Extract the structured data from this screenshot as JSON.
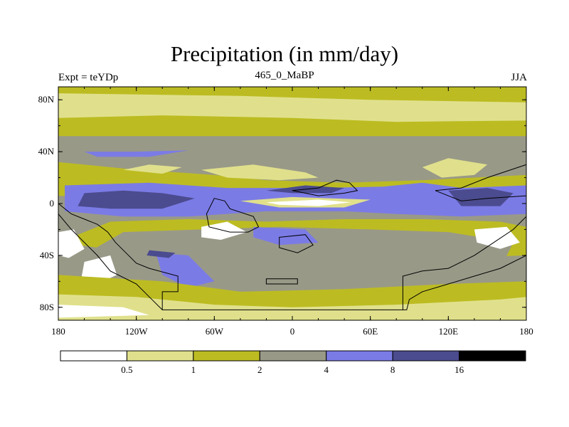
{
  "chart_data": {
    "type": "heatmap",
    "title": "Precipitation (in mm/day)",
    "left_string": "Expt = teYDp",
    "center_string": "465_0_MaBP",
    "right_string": "JJA",
    "x_axis": {
      "range": [
        -180,
        180
      ],
      "ticks": [
        -180,
        -120,
        -60,
        0,
        60,
        120,
        180
      ],
      "tick_labels": [
        "180",
        "120W",
        "60W",
        "0",
        "60E",
        "120E",
        "180"
      ]
    },
    "y_axis": {
      "range": [
        -90,
        90
      ],
      "ticks": [
        80,
        40,
        0,
        -40,
        -80
      ],
      "tick_labels": [
        "80N",
        "40N",
        "0",
        "40S",
        "80S"
      ]
    },
    "colorbar": {
      "levels": [
        "0.5",
        "1",
        "2",
        "4",
        "8",
        "16"
      ],
      "colors": [
        "#ffffff",
        "#e0e08c",
        "#bcbc22",
        "#999988",
        "#7b7be6",
        "#4b4b8f",
        "#000000"
      ]
    },
    "fields": [
      {
        "name": "polar-north",
        "band": 2,
        "points": [
          [
            -180,
            90
          ],
          [
            180,
            90
          ],
          [
            180,
            52
          ],
          [
            -180,
            52
          ]
        ]
      },
      {
        "name": "arctic-pale",
        "band": 1,
        "points": [
          [
            -180,
            85
          ],
          [
            -40,
            83
          ],
          [
            60,
            80
          ],
          [
            180,
            78
          ],
          [
            180,
            64
          ],
          [
            80,
            63
          ],
          [
            0,
            66
          ],
          [
            -100,
            68
          ],
          [
            -180,
            66
          ]
        ]
      },
      {
        "name": "midlat-north-olive",
        "band": 2,
        "points": [
          [
            -180,
            32
          ],
          [
            -130,
            27
          ],
          [
            -60,
            22
          ],
          [
            -20,
            18
          ],
          [
            40,
            16
          ],
          [
            100,
            18
          ],
          [
            180,
            22
          ],
          [
            180,
            12
          ],
          [
            100,
            6
          ],
          [
            40,
            2
          ],
          [
            -40,
            3
          ],
          [
            -120,
            4
          ],
          [
            -180,
            6
          ]
        ]
      },
      {
        "name": "north-pale-1",
        "band": 1,
        "points": [
          [
            -130,
            26
          ],
          [
            -110,
            30
          ],
          [
            -85,
            28
          ],
          [
            -100,
            23
          ]
        ]
      },
      {
        "name": "north-pale-2",
        "band": 1,
        "points": [
          [
            -70,
            26
          ],
          [
            -30,
            30
          ],
          [
            10,
            24
          ],
          [
            20,
            20
          ],
          [
            -10,
            18
          ],
          [
            -50,
            20
          ]
        ]
      },
      {
        "name": "asia-pale",
        "band": 1,
        "points": [
          [
            100,
            28
          ],
          [
            120,
            35
          ],
          [
            150,
            30
          ],
          [
            140,
            22
          ],
          [
            115,
            20
          ]
        ]
      },
      {
        "name": "tropical-blue",
        "band": 4,
        "points": [
          [
            -175,
            14
          ],
          [
            -110,
            16
          ],
          [
            -50,
            12
          ],
          [
            20,
            12
          ],
          [
            70,
            13
          ],
          [
            100,
            16
          ],
          [
            130,
            12
          ],
          [
            180,
            14
          ],
          [
            180,
            -8
          ],
          [
            130,
            -10
          ],
          [
            80,
            -8
          ],
          [
            40,
            -6
          ],
          [
            -20,
            -6
          ],
          [
            -80,
            -10
          ],
          [
            -130,
            -10
          ],
          [
            -175,
            -6
          ]
        ]
      },
      {
        "name": "north-blue-jet",
        "band": 4,
        "points": [
          [
            -160,
            40
          ],
          [
            -120,
            40
          ],
          [
            -80,
            41
          ],
          [
            -110,
            36
          ],
          [
            -150,
            36
          ]
        ]
      },
      {
        "name": "tropical-dark-west",
        "band": 5,
        "points": [
          [
            -160,
            8
          ],
          [
            -130,
            10
          ],
          [
            -100,
            8
          ],
          [
            -75,
            4
          ],
          [
            -100,
            -4
          ],
          [
            -140,
            -4
          ],
          [
            -165,
            -2
          ]
        ]
      },
      {
        "name": "tropical-dark-asia",
        "band": 5,
        "points": [
          [
            -20,
            10
          ],
          [
            10,
            14
          ],
          [
            40,
            12
          ],
          [
            30,
            8
          ],
          [
            0,
            8
          ]
        ]
      },
      {
        "name": "tropical-dark-pacific",
        "band": 5,
        "points": [
          [
            120,
            10
          ],
          [
            150,
            12
          ],
          [
            170,
            8
          ],
          [
            160,
            -2
          ],
          [
            130,
            -2
          ]
        ]
      },
      {
        "name": "equatorial-pale",
        "band": 1,
        "points": [
          [
            -40,
            2
          ],
          [
            0,
            5
          ],
          [
            60,
            3
          ],
          [
            40,
            -3
          ],
          [
            -10,
            -3
          ]
        ]
      },
      {
        "name": "equatorial-white",
        "band": 0,
        "points": [
          [
            -20,
            1
          ],
          [
            20,
            3
          ],
          [
            45,
            1
          ],
          [
            20,
            -2
          ],
          [
            -10,
            -1
          ]
        ]
      },
      {
        "name": "south-tropic-olive",
        "band": 2,
        "points": [
          [
            -140,
            -14
          ],
          [
            -80,
            -12
          ],
          [
            -20,
            -14
          ],
          [
            40,
            -12
          ],
          [
            100,
            -12
          ],
          [
            160,
            -14
          ],
          [
            180,
            -18
          ],
          [
            180,
            -40
          ],
          [
            120,
            -42
          ],
          [
            60,
            -38
          ],
          [
            0,
            -36
          ],
          [
            -60,
            -40
          ],
          [
            -120,
            -38
          ],
          [
            -180,
            -30
          ]
        ]
      },
      {
        "name": "south-gray-belt",
        "band": 3,
        "points": [
          [
            -130,
            -22
          ],
          [
            -70,
            -20
          ],
          [
            -10,
            -18
          ],
          [
            60,
            -20
          ],
          [
            120,
            -22
          ],
          [
            170,
            -30
          ],
          [
            160,
            -50
          ],
          [
            100,
            -52
          ],
          [
            40,
            -48
          ],
          [
            -40,
            -50
          ],
          [
            -110,
            -48
          ],
          [
            -170,
            -45
          ]
        ]
      },
      {
        "name": "south-blue-1",
        "band": 4,
        "points": [
          [
            -105,
            -38
          ],
          [
            -80,
            -40
          ],
          [
            -60,
            -60
          ],
          [
            -80,
            -65
          ],
          [
            -100,
            -55
          ]
        ]
      },
      {
        "name": "south-blue-2",
        "band": 4,
        "points": [
          [
            -30,
            -18
          ],
          [
            10,
            -20
          ],
          [
            20,
            -30
          ],
          [
            -10,
            -32
          ],
          [
            -30,
            -26
          ]
        ]
      },
      {
        "name": "south-dark-patch",
        "band": 5,
        "points": [
          [
            -110,
            -36
          ],
          [
            -90,
            -38
          ],
          [
            -95,
            -42
          ],
          [
            -112,
            -40
          ]
        ]
      },
      {
        "name": "africa-white",
        "band": 0,
        "points": [
          [
            -70,
            -18
          ],
          [
            -50,
            -14
          ],
          [
            -35,
            -22
          ],
          [
            -55,
            -28
          ],
          [
            -70,
            -26
          ]
        ]
      },
      {
        "name": "australia-white",
        "band": 0,
        "points": [
          [
            140,
            -20
          ],
          [
            165,
            -18
          ],
          [
            175,
            -30
          ],
          [
            160,
            -35
          ],
          [
            142,
            -30
          ]
        ]
      },
      {
        "name": "west-white-1",
        "band": 0,
        "points": [
          [
            -180,
            -22
          ],
          [
            -168,
            -20
          ],
          [
            -160,
            -35
          ],
          [
            -172,
            -42
          ],
          [
            -180,
            -40
          ]
        ]
      },
      {
        "name": "west-white-2",
        "band": 0,
        "points": [
          [
            -160,
            -45
          ],
          [
            -140,
            -40
          ],
          [
            -135,
            -55
          ],
          [
            -150,
            -62
          ],
          [
            -162,
            -56
          ]
        ]
      },
      {
        "name": "south-polar-olive",
        "band": 2,
        "points": [
          [
            -180,
            -55
          ],
          [
            -100,
            -60
          ],
          [
            -40,
            -68
          ],
          [
            40,
            -66
          ],
          [
            120,
            -62
          ],
          [
            180,
            -60
          ],
          [
            180,
            -90
          ],
          [
            -180,
            -90
          ]
        ]
      },
      {
        "name": "south-polar-pale",
        "band": 1,
        "points": [
          [
            -180,
            -70
          ],
          [
            -120,
            -72
          ],
          [
            -60,
            -78
          ],
          [
            0,
            -80
          ],
          [
            80,
            -78
          ],
          [
            160,
            -74
          ],
          [
            180,
            -72
          ],
          [
            180,
            -90
          ],
          [
            -180,
            -90
          ]
        ]
      },
      {
        "name": "polar-white-west",
        "band": 0,
        "points": [
          [
            -180,
            -78
          ],
          [
            -130,
            -80
          ],
          [
            -110,
            -86
          ],
          [
            -180,
            -88
          ]
        ]
      }
    ],
    "continents": [
      {
        "name": "pangea-south",
        "points": [
          [
            -100,
            -82
          ],
          [
            -100,
            -68
          ],
          [
            -88,
            -68
          ],
          [
            -88,
            -56
          ],
          [
            -110,
            -50
          ],
          [
            -120,
            -46
          ],
          [
            -128,
            -38
          ],
          [
            -136,
            -30
          ],
          [
            -142,
            -22
          ],
          [
            -150,
            -16
          ],
          [
            -160,
            -12
          ],
          [
            -170,
            -8
          ],
          [
            -180,
            0
          ],
          [
            -180,
            -8
          ],
          [
            -170,
            -20
          ],
          [
            -160,
            -30
          ],
          [
            -150,
            -40
          ],
          [
            -140,
            -52
          ],
          [
            -120,
            -62
          ],
          [
            -110,
            -72
          ],
          [
            -100,
            -82
          ],
          [
            85,
            -82
          ],
          [
            85,
            -56
          ],
          [
            100,
            -52
          ],
          [
            120,
            -50
          ],
          [
            140,
            -40
          ],
          [
            155,
            -30
          ],
          [
            170,
            -20
          ],
          [
            180,
            -10
          ],
          [
            180,
            -40
          ],
          [
            160,
            -50
          ],
          [
            140,
            -56
          ],
          [
            120,
            -62
          ],
          [
            100,
            -68
          ],
          [
            90,
            -74
          ],
          [
            88,
            -82
          ]
        ]
      },
      {
        "name": "laurentia",
        "points": [
          [
            -60,
            4
          ],
          [
            -52,
            2
          ],
          [
            -48,
            -4
          ],
          [
            -30,
            -10
          ],
          [
            -26,
            -18
          ],
          [
            -34,
            -22
          ],
          [
            -48,
            -22
          ],
          [
            -64,
            -18
          ],
          [
            -66,
            -8
          ]
        ]
      },
      {
        "name": "baltica",
        "points": [
          [
            0,
            10
          ],
          [
            20,
            12
          ],
          [
            34,
            18
          ],
          [
            44,
            16
          ],
          [
            50,
            10
          ],
          [
            40,
            8
          ],
          [
            20,
            6
          ]
        ]
      },
      {
        "name": "siberia",
        "points": [
          [
            110,
            10
          ],
          [
            130,
            12
          ],
          [
            150,
            20
          ],
          [
            168,
            26
          ],
          [
            180,
            30
          ],
          [
            180,
            6
          ],
          [
            150,
            4
          ],
          [
            130,
            2
          ]
        ]
      },
      {
        "name": "north-china",
        "points": [
          [
            -10,
            -26
          ],
          [
            10,
            -24
          ],
          [
            16,
            -32
          ],
          [
            4,
            -38
          ],
          [
            -10,
            -34
          ]
        ]
      },
      {
        "name": "south-island",
        "points": [
          [
            -20,
            -58
          ],
          [
            4,
            -58
          ],
          [
            4,
            -62
          ],
          [
            -20,
            -62
          ]
        ]
      }
    ]
  }
}
